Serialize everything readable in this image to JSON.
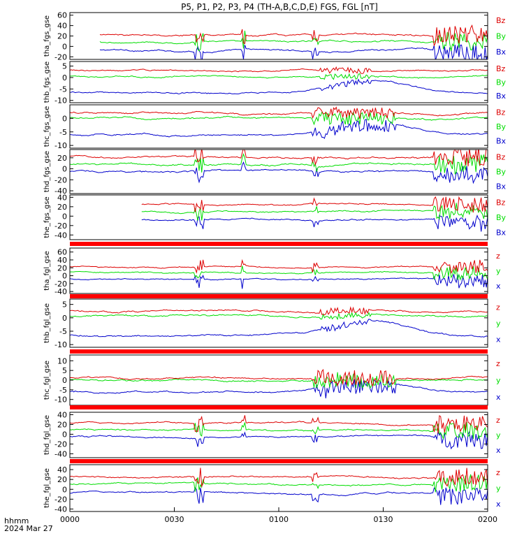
{
  "title": "P5, P1, P2, P3, P4 (TH-A,B,C,D,E) FGS, FGL [nT]",
  "x_axis": {
    "tick_labels": [
      "0000",
      "0030",
      "0100",
      "0130",
      "0200"
    ],
    "label_line1": "hhmm",
    "label_line2": "2024 Mar 27"
  },
  "colors": {
    "x": "#0000cc",
    "y": "#00dd00",
    "z": "#dd0000",
    "axis": "#000000",
    "bar": "#ff0000"
  },
  "chart_data": {
    "type": "line",
    "x_unit": "hhmm",
    "x_range": [
      "0000",
      "0200"
    ],
    "panels": [
      {
        "ylabel": "tha_fgs_gse",
        "ylim": [
          -25,
          65
        ],
        "yticks": [
          -20,
          0,
          20,
          40,
          60
        ],
        "legend": [
          "Bz",
          "By",
          "Bx"
        ],
        "start": 0.07,
        "baselines": {
          "z": 22,
          "y": 8,
          "x": -8
        },
        "noise": 3,
        "spikes": [
          [
            0.3,
            0.32,
            3
          ],
          [
            0.41,
            0.42,
            3.5
          ],
          [
            0.58,
            0.595,
            2
          ],
          [
            0.87,
            1.0,
            3
          ]
        ],
        "cross": false
      },
      {
        "ylabel": "thb_fgs_gse",
        "ylim": [
          -11,
          7
        ],
        "yticks": [
          -10,
          -5,
          0,
          5
        ],
        "legend": [
          "Bz",
          "By",
          "Bx"
        ],
        "start": 0.0,
        "baselines": {
          "z": 3,
          "y": 0.5,
          "x": -6.5
        },
        "noise": 0.6,
        "spikes": [
          [
            0.6,
            0.72,
            1
          ]
        ],
        "cross": true
      },
      {
        "ylabel": "thc_fgs_gse",
        "ylim": [
          -11,
          5
        ],
        "yticks": [
          -10,
          -5,
          0
        ],
        "legend": [
          "Bz",
          "By",
          "Bx"
        ],
        "start": 0.0,
        "baselines": {
          "z": 2,
          "y": 0,
          "x": -6
        },
        "noise": 0.6,
        "spikes": [
          [
            0.58,
            0.78,
            2
          ]
        ],
        "cross": true
      },
      {
        "ylabel": "thd_fgs_gse",
        "ylim": [
          -45,
          35
        ],
        "yticks": [
          -40,
          -20,
          0,
          20
        ],
        "legend": [
          "Bz",
          "By",
          "Bx"
        ],
        "start": 0.0,
        "baselines": {
          "z": 22,
          "y": 8,
          "x": -5
        },
        "noise": 3,
        "spikes": [
          [
            0.3,
            0.32,
            3
          ],
          [
            0.41,
            0.42,
            3.5
          ],
          [
            0.58,
            0.595,
            2
          ],
          [
            0.87,
            1.0,
            3
          ]
        ],
        "cross": false
      },
      {
        "ylabel": "the_fgs_gse",
        "ylim": [
          -50,
          45
        ],
        "yticks": [
          -40,
          -20,
          0,
          20,
          40
        ],
        "legend": [
          "Bz",
          "By",
          "Bx"
        ],
        "start": 0.17,
        "baselines": {
          "z": 25,
          "y": 10,
          "x": -8
        },
        "noise": 3,
        "spikes": [
          [
            0.3,
            0.32,
            3
          ],
          [
            0.58,
            0.595,
            2
          ],
          [
            0.87,
            1.0,
            3
          ]
        ],
        "cross": false
      },
      {
        "ylabel": "tha_fgl_gse",
        "ylim": [
          -45,
          70
        ],
        "yticks": [
          -40,
          -20,
          0,
          20,
          40,
          60
        ],
        "legend": [
          "z",
          "y",
          "x"
        ],
        "start": 0.0,
        "baselines": {
          "z": 22,
          "y": 8,
          "x": -8
        },
        "noise": 3,
        "spikes": [
          [
            0.3,
            0.32,
            3
          ],
          [
            0.41,
            0.42,
            3.5
          ],
          [
            0.58,
            0.595,
            2
          ],
          [
            0.87,
            1.0,
            3
          ]
        ],
        "cross": false
      },
      {
        "ylabel": "thb_fgl_gse",
        "ylim": [
          -11,
          7
        ],
        "yticks": [
          -10,
          -5,
          0,
          5
        ],
        "legend": [
          "z",
          "y",
          "x"
        ],
        "start": 0.0,
        "baselines": {
          "z": 2.5,
          "y": 0.5,
          "x": -6.5
        },
        "noise": 0.6,
        "spikes": [
          [
            0.6,
            0.72,
            1
          ]
        ],
        "cross": true
      },
      {
        "ylabel": "thc_fgl_gse",
        "ylim": [
          -13,
          13
        ],
        "yticks": [
          -10,
          -5,
          0,
          5,
          10
        ],
        "legend": [
          "z",
          "y",
          "x"
        ],
        "start": 0.0,
        "baselines": {
          "z": 1,
          "y": 0,
          "x": -6
        },
        "noise": 0.8,
        "spikes": [
          [
            0.58,
            0.78,
            2.5
          ]
        ],
        "cross": true
      },
      {
        "ylabel": "thd_fgl_gse",
        "ylim": [
          -48,
          45
        ],
        "yticks": [
          -40,
          -20,
          0,
          20,
          40
        ],
        "legend": [
          "z",
          "y",
          "x"
        ],
        "start": 0.0,
        "baselines": {
          "z": 22,
          "y": 8,
          "x": -5
        },
        "noise": 3,
        "spikes": [
          [
            0.3,
            0.32,
            3
          ],
          [
            0.41,
            0.42,
            3.5
          ],
          [
            0.58,
            0.595,
            2
          ],
          [
            0.87,
            1.0,
            3
          ]
        ],
        "cross": false
      },
      {
        "ylabel": "the_fgl_gse",
        "ylim": [
          -45,
          50
        ],
        "yticks": [
          -40,
          -20,
          0,
          20,
          40
        ],
        "legend": [
          "z",
          "y",
          "x"
        ],
        "start": 0.0,
        "baselines": {
          "z": 25,
          "y": 10,
          "x": -8
        },
        "noise": 3,
        "spikes": [
          [
            0.3,
            0.32,
            3.5
          ],
          [
            0.58,
            0.595,
            2
          ],
          [
            0.87,
            1.0,
            3
          ]
        ],
        "cross": false
      }
    ]
  }
}
